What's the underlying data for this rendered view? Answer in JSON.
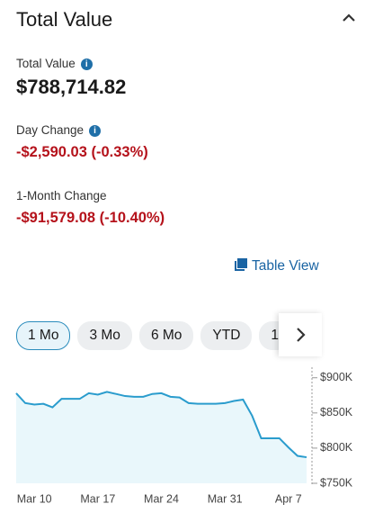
{
  "header": {
    "title": "Total Value"
  },
  "metrics": [
    {
      "label": "Total Value",
      "value": "$788,714.82"
    },
    {
      "label": "Day Change",
      "value": "-$2,590.03 (-0.33%)"
    },
    {
      "label": "1-Month Change",
      "value": "-$91,579.08 (-10.40%)"
    }
  ],
  "table_view": "Table View",
  "ranges": [
    "1 Mo",
    "3 Mo",
    "6 Mo",
    "YTD",
    "1"
  ],
  "selected_range": 0,
  "chart_data": {
    "type": "line",
    "categories": [
      null,
      null,
      "Mar 10",
      null,
      null,
      null,
      null,
      null,
      null,
      "Mar 17",
      null,
      null,
      null,
      null,
      null,
      null,
      "Mar 24",
      null,
      null,
      null,
      null,
      null,
      null,
      "Mar 31",
      null,
      null,
      null,
      null,
      null,
      null,
      "Apr 7",
      null,
      null
    ],
    "series": [
      {
        "color": "#2a9ccd",
        "values": [
          878000,
          864000,
          862000,
          863000,
          858000,
          870000,
          870000,
          870000,
          878000,
          876000,
          880000,
          877000,
          874000,
          873000,
          873000,
          877000,
          878000,
          873000,
          872000,
          864000,
          863000,
          863000,
          863000,
          864000,
          867000,
          869000,
          846000,
          814000,
          814000,
          814000,
          801000,
          789000,
          787000
        ]
      }
    ],
    "ylim": [
      750000,
      915000
    ],
    "yticks": [
      {
        "value": 750000,
        "label": "$750K"
      },
      {
        "value": 800000,
        "label": "$800K"
      },
      {
        "value": 850000,
        "label": "$850K"
      },
      {
        "value": 900000,
        "label": "$900K"
      }
    ],
    "fill": "#e9f7fb"
  }
}
